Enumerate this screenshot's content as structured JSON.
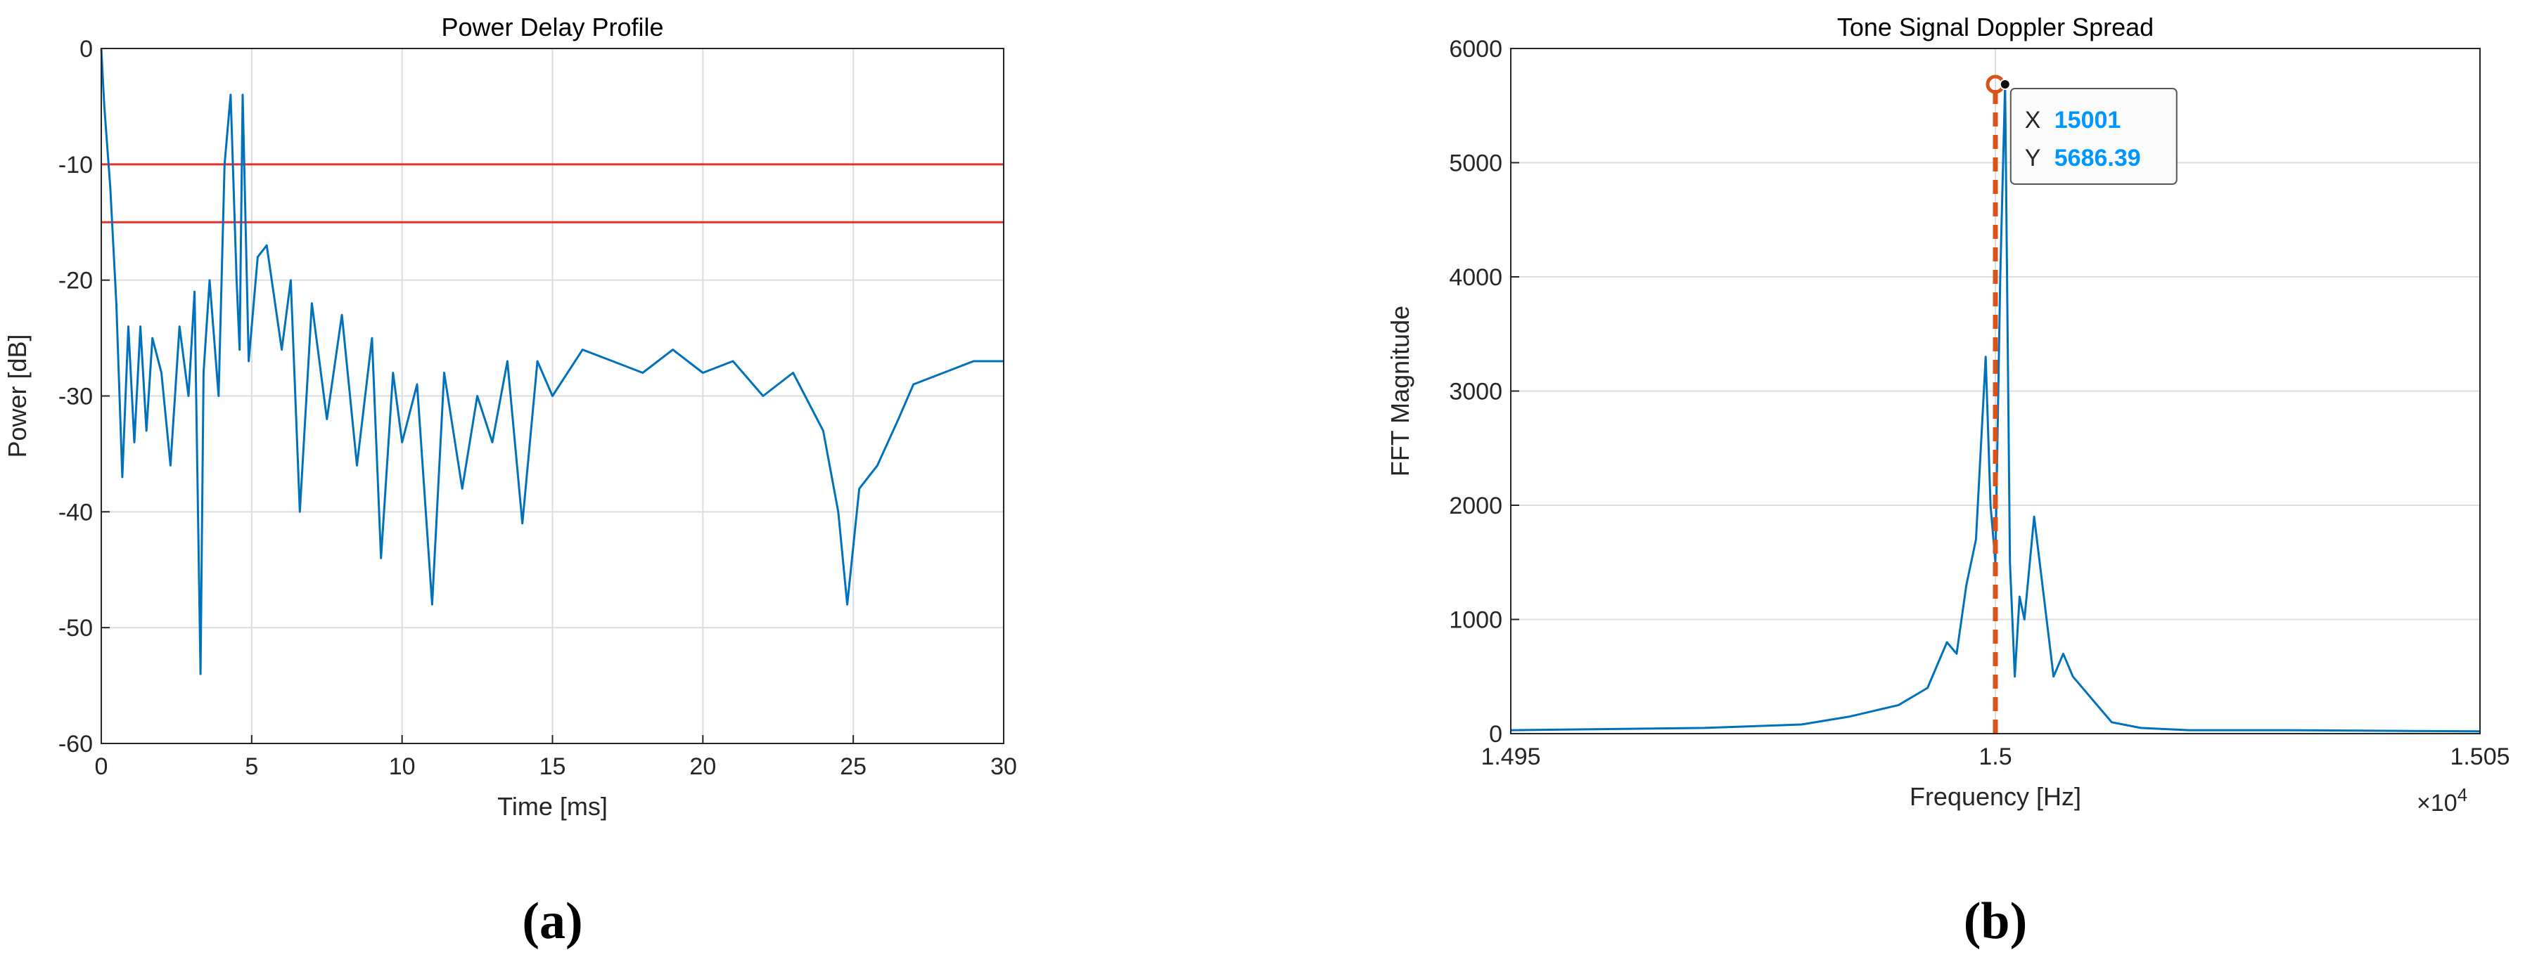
{
  "chart_data": [
    {
      "type": "line",
      "title": "Power Delay Profile",
      "xlabel": "Time [ms]",
      "ylabel": "Power [dB]",
      "caption": "(a)",
      "xlim": [
        0,
        30
      ],
      "xticks": [
        0,
        5,
        10,
        15,
        20,
        25,
        30
      ],
      "ylim": [
        -60,
        0
      ],
      "yticks": [
        -60,
        -50,
        -40,
        -30,
        -20,
        -10,
        0
      ],
      "grid": true,
      "x": [
        0,
        0.1,
        0.3,
        0.5,
        0.7,
        0.9,
        1.1,
        1.3,
        1.5,
        1.7,
        2,
        2.3,
        2.6,
        2.9,
        3.1,
        3.3,
        3.4,
        3.6,
        3.9,
        4.1,
        4.3,
        4.5,
        4.6,
        4.7,
        4.9,
        5.2,
        5.5,
        6,
        6.3,
        6.6,
        7,
        7.5,
        8,
        8.5,
        9,
        9.3,
        9.7,
        10,
        10.5,
        11,
        11.4,
        12,
        12.5,
        13,
        13.5,
        14,
        14.5,
        15,
        16,
        17,
        18,
        19,
        20,
        21,
        22,
        23,
        24,
        24.5,
        24.8,
        25.2,
        25.8,
        26.5,
        27,
        28,
        29,
        30
      ],
      "series": [
        {
          "color": "#0072bd",
          "values": [
            0,
            -5,
            -12,
            -22,
            -37,
            -24,
            -34,
            -24,
            -33,
            -25,
            -28,
            -36,
            -24,
            -30,
            -21,
            -54,
            -28,
            -20,
            -30,
            -10,
            -4,
            -20,
            -26,
            -4,
            -27,
            -18,
            -17,
            -26,
            -20,
            -40,
            -22,
            -32,
            -23,
            -36,
            -25,
            -44,
            -28,
            -34,
            -29,
            -48,
            -28,
            -38,
            -30,
            -34,
            -27,
            -41,
            -27,
            -30,
            -26,
            -27,
            -28,
            -26,
            -28,
            -27,
            -30,
            -28,
            -33,
            -40,
            -48,
            -38,
            -36,
            -32,
            -29,
            -28,
            -27,
            -27
          ]
        }
      ],
      "hlines": [
        {
          "value": -10,
          "color": "#e8302b"
        },
        {
          "value": -15,
          "color": "#e8302b"
        }
      ]
    },
    {
      "type": "line",
      "title": "Tone Signal Doppler Spread",
      "xlabel": "Frequency [Hz]",
      "ylabel": "FFT Magnitude",
      "caption": "(b)",
      "x_exponent": {
        "base": "×10",
        "power": "4"
      },
      "xlim": [
        14950,
        15050
      ],
      "xticks": [
        {
          "value": 14950,
          "label": "1.495"
        },
        {
          "value": 15000,
          "label": "1.5"
        },
        {
          "value": 15050,
          "label": "1.505"
        }
      ],
      "ylim": [
        0,
        6000
      ],
      "yticks": [
        0,
        1000,
        2000,
        3000,
        4000,
        5000,
        6000
      ],
      "grid": true,
      "x": [
        14950,
        14970,
        14980,
        14985,
        14990,
        14993,
        14995,
        14996,
        14997,
        14998,
        14999,
        14999.5,
        15000,
        15000.5,
        15001,
        15001.5,
        15002,
        15002.5,
        15003,
        15004,
        15005,
        15006,
        15007,
        15008,
        15010,
        15012,
        15015,
        15020,
        15030,
        15050
      ],
      "series": [
        {
          "color": "#0072bd",
          "values": [
            30,
            50,
            80,
            150,
            250,
            400,
            800,
            700,
            1300,
            1700,
            3300,
            2000,
            1500,
            4000,
            5686.39,
            1500,
            500,
            1200,
            1000,
            1900,
            1200,
            500,
            700,
            500,
            300,
            100,
            50,
            30,
            30,
            20
          ]
        }
      ],
      "vlines": [
        {
          "value": 15000,
          "color": "#d95319"
        }
      ],
      "datatip": {
        "x_label": "X",
        "x": 15001,
        "y_label": "Y",
        "y": 5686.39
      }
    }
  ]
}
